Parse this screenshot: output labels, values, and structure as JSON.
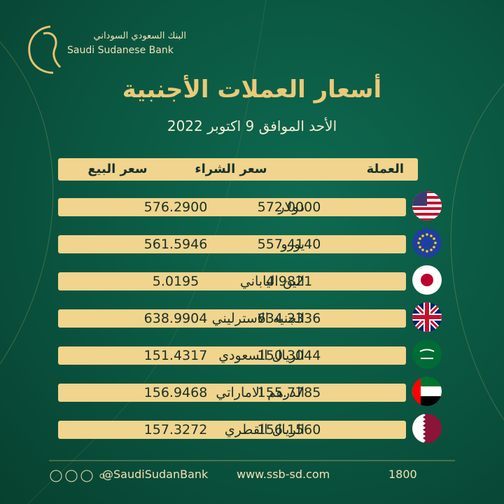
{
  "header": {
    "bank_name_ar": "البنك السعودي السوداني",
    "bank_name_en": "Saudi Sudanese Bank",
    "title": "أسعار العملات الأجنبية",
    "date": "الأحد الموافق 9 اكتوبر 2022"
  },
  "table": {
    "columns": [
      "العملة",
      "سعر الشراء",
      "سعر البيع"
    ],
    "rows": [
      [
        "دولار",
        "572.0000",
        "576.2900"
      ],
      [
        "يورو",
        "557.4140",
        "561.5946"
      ],
      [
        "الين الياباني",
        "4.9821",
        "5.0195"
      ],
      [
        "الجنيه الاسترليني",
        "634.2336",
        "638.9904"
      ],
      [
        "الريال السعودي",
        "150.3044",
        "151.4317"
      ],
      [
        "الدرهم الاماراتي",
        "155.7785",
        "156.9468"
      ],
      [
        "الريال القطري",
        "156.1560",
        "157.3272"
      ]
    ]
  },
  "footer": {
    "social": "@SaudiSudanBank",
    "website": "www.ssb-sd.com",
    "phone": "1800"
  }
}
